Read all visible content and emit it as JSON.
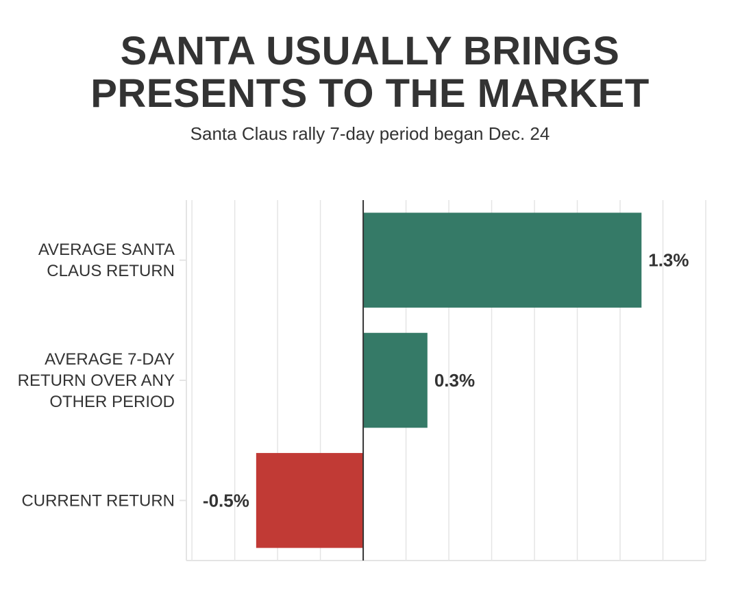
{
  "title_lines": [
    "SANTA USUALLY BRINGS",
    "PRESENTS TO THE MARKET"
  ],
  "subtitle": "Santa Claus rally 7-day period began Dec. 24",
  "chart_data": {
    "type": "bar",
    "orientation": "horizontal",
    "categories": [
      [
        "AVERAGE SANTA",
        "CLAUS RETURN"
      ],
      [
        "AVERAGE 7-DAY",
        "RETURN OVER ANY",
        "OTHER PERIOD"
      ],
      [
        "CURRENT RETURN"
      ]
    ],
    "values": [
      1.3,
      0.3,
      -0.5
    ],
    "value_labels": [
      "1.3%",
      "0.3%",
      "-0.5%"
    ],
    "units": "%",
    "xlim": [
      -0.826,
      1.6
    ],
    "x_grid_step": 0.2,
    "grid": true,
    "colors": {
      "positive": "#357a67",
      "negative": "#c13a35",
      "grid": "#e4e4e4",
      "axis": "#333333",
      "text": "#333333"
    }
  }
}
